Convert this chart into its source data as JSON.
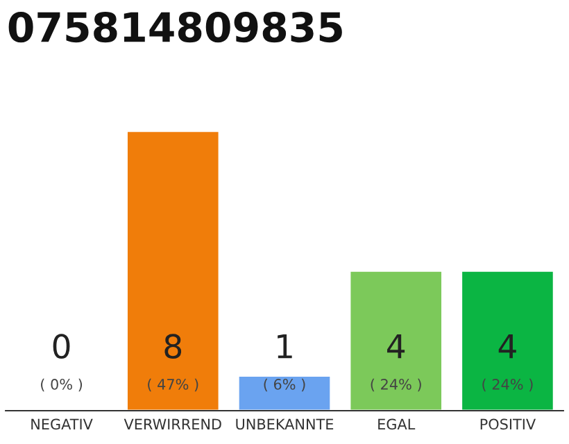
{
  "chart_data": {
    "type": "bar",
    "title": "075814809835",
    "categories": [
      "NEGATIV",
      "VERWIRREND",
      "UNBEKANNTE",
      "EGAL",
      "POSITIV"
    ],
    "values": [
      0,
      8,
      1,
      4,
      4
    ],
    "colors": [
      null,
      "#f07d0a",
      "#6aa3f0",
      "#7cc95a",
      "#0bb543"
    ],
    "ylim": [
      0,
      8
    ],
    "tick_labels": "x",
    "data_labels": true,
    "grid": false,
    "legend": false,
    "annotations": [
      "( 0% )",
      "( 47% )",
      "( 6% )",
      "( 24% )",
      "( 24% )"
    ]
  }
}
